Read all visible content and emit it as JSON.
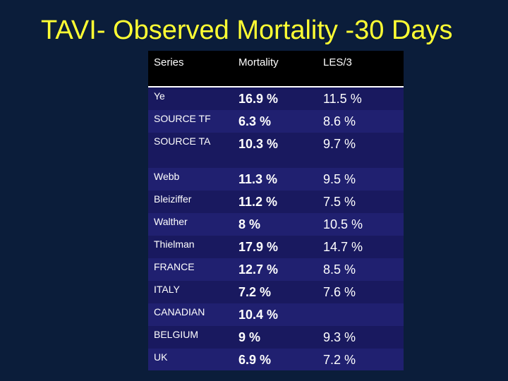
{
  "title": "TAVI- Observed Mortality -30 Days",
  "table": {
    "headers": {
      "series": "Series",
      "mortality": "Mortality",
      "les": "LES/3"
    },
    "rows": [
      {
        "series": "Ye",
        "mortality": "16.9 %",
        "les": "11.5 %"
      },
      {
        "series": "SOURCE TF",
        "mortality": "6.3 %",
        "les": "8.6 %"
      },
      {
        "series": "SOURCE TA",
        "mortality": "10.3 %",
        "les": "9.7 %"
      },
      {
        "series": "Webb",
        "mortality": "11.3 %",
        "les": "9.5 %"
      },
      {
        "series": "Bleiziffer",
        "mortality": "11.2 %",
        "les": "7.5 %"
      },
      {
        "series": "Walther",
        "mortality": "8 %",
        "les": "10.5 %"
      },
      {
        "series": "Thielman",
        "mortality": "17.9 %",
        "les": "14.7 %"
      },
      {
        "series": "FRANCE",
        "mortality": "12.7 %",
        "les": "8.5 %"
      },
      {
        "series": "ITALY",
        "mortality": "7.2 %",
        "les": "7.6 %"
      },
      {
        "series": "CANADIAN",
        "mortality": "10.4 %",
        "les": ""
      },
      {
        "series": "BELGIUM",
        "mortality": "9 %",
        "les": "9.3 %"
      },
      {
        "series": "UK",
        "mortality": "6.9 %",
        "les": "7.2 %"
      }
    ]
  }
}
